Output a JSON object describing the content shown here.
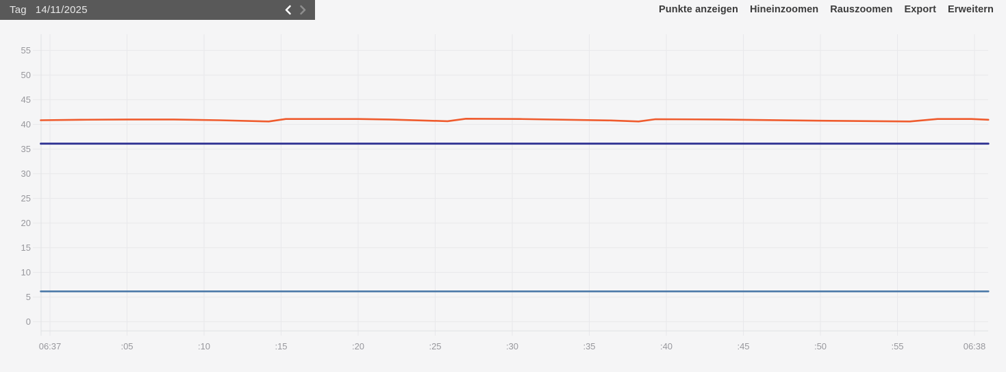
{
  "topbar": {
    "mode_label": "Tag",
    "date": "14/11/2025",
    "icons": [
      "chevron-left",
      "chevron-right"
    ]
  },
  "toolbar": {
    "items": [
      "Punkte anzeigen",
      "Hineinzoomen",
      "Rauszoomen",
      "Export",
      "Erweitern"
    ]
  },
  "colors": {
    "topbar_bg": "#595959",
    "background": "#f5f5f6",
    "grid": "#e8e8eb",
    "axis": "#e0e1e4",
    "tick_text": "#97979c",
    "series_orange": "#ef5b2d",
    "series_navy": "#2e3192",
    "series_steelblue": "#4b79a8"
  },
  "chart_data": {
    "type": "line",
    "title": "",
    "xlabel": "",
    "ylabel": "",
    "grid": true,
    "legend": "none",
    "x_window": {
      "start_label": "06:37",
      "end_label": "06:38",
      "unit": "seconds"
    },
    "x_tick_seconds": [
      0,
      5,
      10,
      15,
      20,
      25,
      30,
      35,
      40,
      45,
      50,
      55,
      60
    ],
    "x_tick_labels": [
      "06:37",
      ":05",
      ":10",
      ":15",
      ":20",
      ":25",
      ":30",
      ":35",
      ":40",
      ":45",
      ":50",
      ":55",
      "06:38"
    ],
    "y_ticks": [
      0,
      5,
      10,
      15,
      20,
      25,
      30,
      35,
      40,
      45,
      50,
      55
    ],
    "ylim": [
      0,
      58
    ],
    "xlim_seconds": [
      -0.6,
      60.9
    ],
    "series": [
      {
        "name": "orange",
        "color": "#ef5b2d",
        "width": 2.6,
        "points": [
          [
            -0.6,
            40.85
          ],
          [
            2,
            40.95
          ],
          [
            5,
            41.0
          ],
          [
            8,
            41.0
          ],
          [
            11,
            40.85
          ],
          [
            14.2,
            40.6
          ],
          [
            15.3,
            41.1
          ],
          [
            20,
            41.1
          ],
          [
            22,
            41.0
          ],
          [
            25.8,
            40.65
          ],
          [
            27,
            41.15
          ],
          [
            30.5,
            41.1
          ],
          [
            36.4,
            40.8
          ],
          [
            38.2,
            40.6
          ],
          [
            39.3,
            41.05
          ],
          [
            43.4,
            41.0
          ],
          [
            50,
            40.75
          ],
          [
            55.8,
            40.6
          ],
          [
            57.6,
            41.1
          ],
          [
            59.8,
            41.1
          ],
          [
            60.9,
            40.95
          ]
        ]
      },
      {
        "name": "navy",
        "color": "#2e3192",
        "width": 2.8,
        "points": [
          [
            -0.6,
            36.1
          ],
          [
            60.9,
            36.1
          ]
        ]
      },
      {
        "name": "steelblue",
        "color": "#4b79a8",
        "width": 2.6,
        "points": [
          [
            -0.6,
            6.15
          ],
          [
            60.9,
            6.15
          ]
        ]
      }
    ]
  }
}
